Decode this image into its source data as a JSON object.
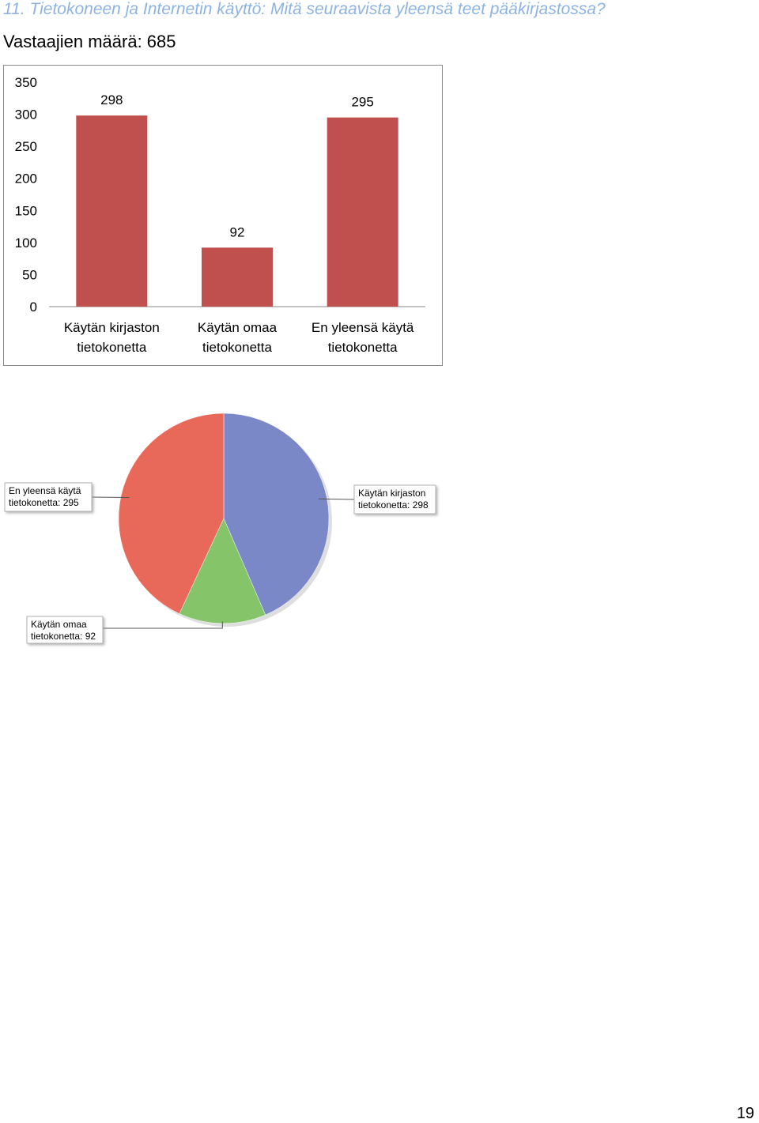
{
  "heading": "11. Tietokoneen ja Internetin käyttö: Mitä seuraavista yleensä teet pääkirjastossa?",
  "respondents": "Vastaajien määrä: 685",
  "page_number": "19",
  "chart_data": [
    {
      "type": "bar",
      "categories": [
        [
          "Käytän kirjaston",
          "tietokonetta"
        ],
        [
          "Käytän omaa",
          "tietokonetta"
        ],
        [
          "En yleensä käytä",
          "tietokonetta"
        ]
      ],
      "values": [
        298,
        92,
        295
      ],
      "ylim": [
        0,
        350
      ],
      "yticks": [
        0,
        50,
        100,
        150,
        200,
        250,
        300,
        350
      ],
      "data_labels": [
        "298",
        "92",
        "295"
      ],
      "bar_color": "#c0504d",
      "grid": false,
      "legend": "none"
    },
    {
      "type": "pie",
      "slices": [
        {
          "label": [
            "Käytän kirjaston",
            "tietokonetta: 298"
          ],
          "value": 298,
          "color": "#7a88c8"
        },
        {
          "label": [
            "Käytän omaa",
            "tietokonetta: 92"
          ],
          "value": 92,
          "color": "#86c46a"
        },
        {
          "label": [
            "En yleensä käytä",
            "tietokonetta: 295"
          ],
          "value": 295,
          "color": "#e8685a"
        }
      ],
      "legend": "none"
    }
  ]
}
